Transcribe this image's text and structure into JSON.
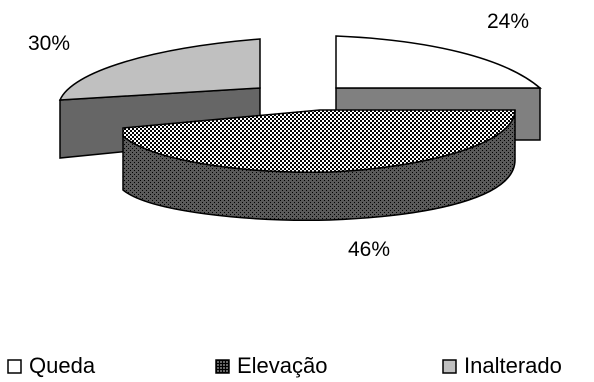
{
  "chart_data": {
    "type": "pie",
    "style": "3d-exploded",
    "title": "",
    "categories": [
      "Queda",
      "Elevação",
      "Inalterado"
    ],
    "values": [
      24,
      46,
      30
    ],
    "labels": [
      "24%",
      "46%",
      "30%"
    ],
    "colors": {
      "Queda": "#ffffff",
      "Elevação": "#444444",
      "Inalterado": "#c0c0c0"
    },
    "legend": {
      "placement": "bottom",
      "entries": [
        "Queda",
        "Elevação",
        "Inalterado"
      ]
    }
  }
}
